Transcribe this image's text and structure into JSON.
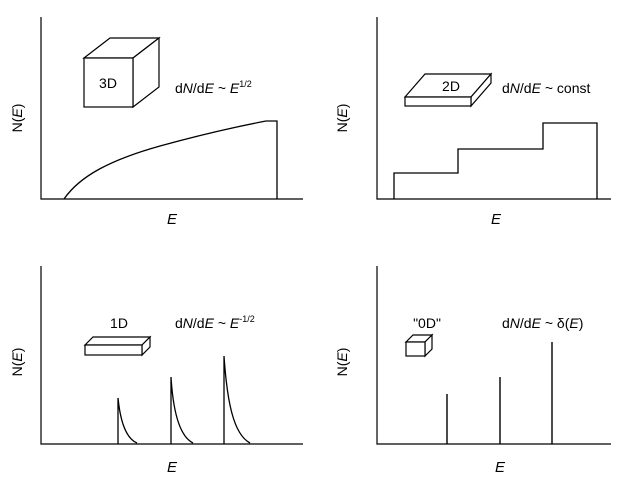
{
  "panels": [
    {
      "id": "3d",
      "ylabel": {
        "pre": "N(",
        "var": "E",
        "post": ")"
      },
      "xlabel": "E",
      "box_label": "3D",
      "formula": {
        "d1": "d",
        "N": "N",
        "slash": "/d",
        "E": "E",
        "rel": " ~ ",
        "rhs_var": "E",
        "rhs_sup": "1/2",
        "rhs_tail": ""
      }
    },
    {
      "id": "2d",
      "ylabel": {
        "pre": "N(",
        "var": "E",
        "post": ")"
      },
      "xlabel": "E",
      "box_label": "2D",
      "formula": {
        "d1": "d",
        "N": "N",
        "slash": "/d",
        "E": "E",
        "rel": " ~ const",
        "rhs_var": "",
        "rhs_sup": "",
        "rhs_tail": ""
      }
    },
    {
      "id": "1d",
      "ylabel": {
        "pre": "N(",
        "var": "E",
        "post": ")"
      },
      "xlabel": "E",
      "box_label": "1D",
      "formula": {
        "d1": "d",
        "N": "N",
        "slash": "/d",
        "E": "E",
        "rel": " ~ ",
        "rhs_var": "E",
        "rhs_sup": "-1/2",
        "rhs_tail": ""
      }
    },
    {
      "id": "0d",
      "ylabel": {
        "pre": "N(",
        "var": "E",
        "post": ")"
      },
      "xlabel": "E",
      "box_label": "\"0D\"",
      "formula": {
        "d1": "d",
        "N": "N",
        "slash": "/d",
        "E": "E",
        "rel": " ~ δ(",
        "rhs_var": "E",
        "rhs_sup": "",
        "rhs_tail": ")"
      }
    }
  ]
}
